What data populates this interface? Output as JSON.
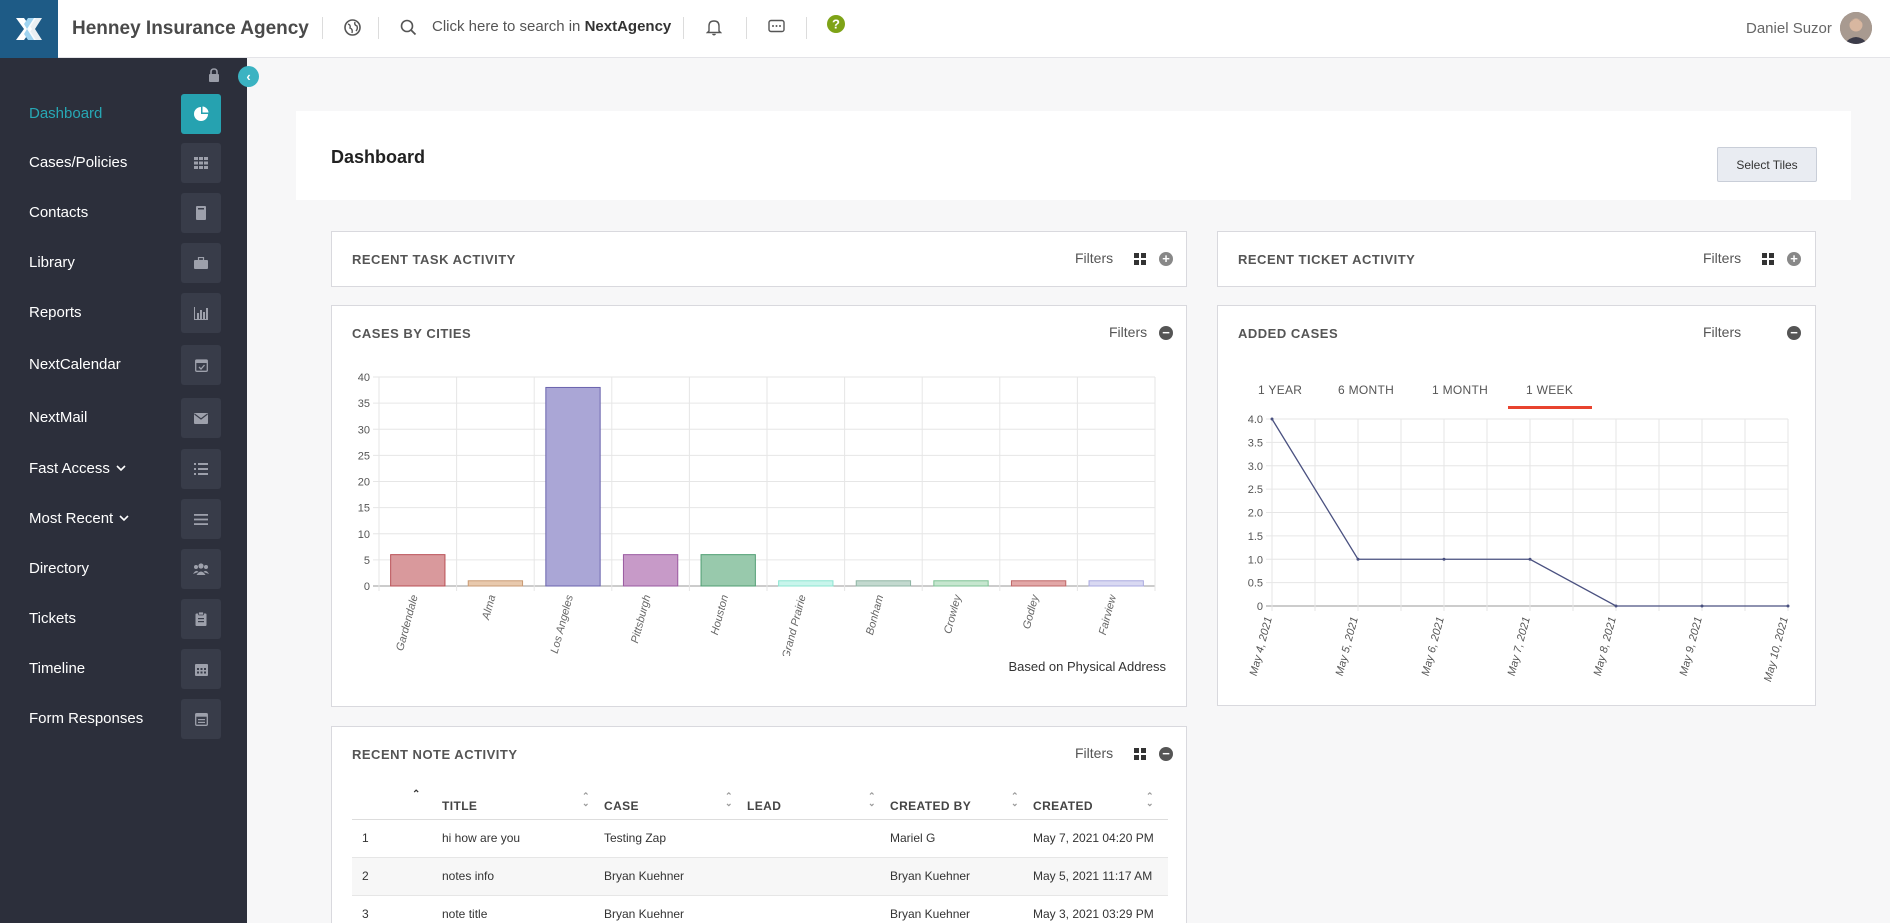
{
  "topbar": {
    "agency_name": "Henney Insurance Agency",
    "search_prefix": "Click here to search in",
    "search_brand": "NextAgency",
    "username": "Daniel Suzor"
  },
  "sidebar": {
    "items": [
      {
        "label": "Dashboard",
        "icon": "pie-chart-icon",
        "active": true
      },
      {
        "label": "Cases/Policies",
        "icon": "grid-icon"
      },
      {
        "label": "Contacts",
        "icon": "book-icon"
      },
      {
        "label": "Library",
        "icon": "briefcase-icon"
      },
      {
        "label": "Reports",
        "icon": "bar-chart-icon"
      },
      {
        "label": "NextCalendar",
        "icon": "calendar-check-icon"
      },
      {
        "label": "NextMail",
        "icon": "envelope-icon"
      },
      {
        "label": "Fast Access",
        "icon": "list-icon",
        "dropdown": true
      },
      {
        "label": "Most Recent",
        "icon": "bars-icon",
        "dropdown": true
      },
      {
        "label": "Directory",
        "icon": "users-icon"
      },
      {
        "label": "Tickets",
        "icon": "clipboard-icon"
      },
      {
        "label": "Timeline",
        "icon": "calendar-icon"
      },
      {
        "label": "Form Responses",
        "icon": "form-icon"
      }
    ]
  },
  "dashboard": {
    "title": "Dashboard",
    "select_tiles": "Select Tiles"
  },
  "tiles": {
    "task": {
      "title": "RECENT TASK ACTIVITY",
      "filters": "Filters"
    },
    "ticket": {
      "title": "RECENT TICKET ACTIVITY",
      "filters": "Filters"
    },
    "cities": {
      "title": "CASES BY CITIES",
      "filters": "Filters",
      "note": "Based on Physical Address"
    },
    "added": {
      "title": "ADDED CASES",
      "filters": "Filters",
      "ranges": [
        "1 YEAR",
        "6 MONTH",
        "1 MONTH",
        "1 WEEK"
      ],
      "active_range": "1 WEEK"
    },
    "notes": {
      "title": "RECENT NOTE ACTIVITY",
      "filters": "Filters",
      "columns": [
        "TITLE",
        "CASE",
        "LEAD",
        "CREATED BY",
        "CREATED"
      ],
      "rows": [
        {
          "num": "1",
          "title": "hi how are you",
          "case": "Testing Zap",
          "lead": "",
          "created_by": "Mariel G",
          "created": "May 7, 2021 04:20 PM"
        },
        {
          "num": "2",
          "title": "notes info",
          "case": "Bryan Kuehner",
          "lead": "",
          "created_by": "Bryan Kuehner",
          "created": "May 5, 2021 11:17 AM"
        },
        {
          "num": "3",
          "title": "note title",
          "case": "Bryan Kuehner",
          "lead": "",
          "created_by": "Bryan Kuehner",
          "created": "May 3, 2021 03:29 PM"
        }
      ]
    }
  },
  "chart_data": [
    {
      "type": "bar",
      "title": "CASES BY CITIES",
      "categories": [
        "Gardendale",
        "Alma",
        "Los Angeles",
        "Pittsburgh",
        "Houston",
        "Grand Prairie",
        "Bonham",
        "Crowley",
        "Godley",
        "Fairview"
      ],
      "values": [
        6,
        1,
        38,
        6,
        6,
        1,
        1,
        1,
        1,
        1
      ],
      "ylim": [
        0,
        40
      ],
      "yticks": [
        0,
        5,
        10,
        15,
        20,
        25,
        30,
        35,
        40
      ],
      "colors": [
        "#d9999c",
        "#e8c9ad",
        "#aaa6d6",
        "#c79ac8",
        "#98c9ac",
        "#c9f5ec",
        "#c3d9cf",
        "#c6e6cf",
        "#e2a7a7",
        "#d9d9f2"
      ],
      "borders": [
        "#b94f55",
        "#c99a73",
        "#6a63ad",
        "#9a5aa0",
        "#4f9d72",
        "#8be5d1",
        "#8fb5a4",
        "#7dc294",
        "#bf6767",
        "#a9a9e0"
      ],
      "grid": true
    },
    {
      "type": "line",
      "title": "ADDED CASES",
      "x": [
        "May 4, 2021",
        "May 5, 2021",
        "May 6, 2021",
        "May 7, 2021",
        "May 8, 2021",
        "May 9, 2021",
        "May 10, 2021"
      ],
      "values": [
        4,
        1,
        1,
        1,
        0,
        0,
        0
      ],
      "ylim": [
        0,
        4
      ],
      "yticks": [
        "0",
        "0.5",
        "1.0",
        "1.5",
        "2.0",
        "2.5",
        "3.0",
        "3.5",
        "4.0"
      ],
      "color": "#4a5180",
      "grid": true
    }
  ]
}
